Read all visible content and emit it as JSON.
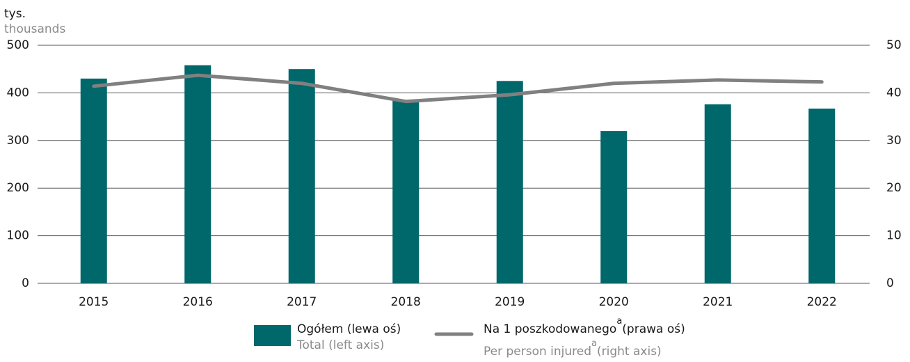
{
  "chart_data": {
    "type": "bar_line",
    "y_label": "tys.",
    "y_label_en": "thousands",
    "categories": [
      "2015",
      "2016",
      "2017",
      "2018",
      "2019",
      "2020",
      "2021",
      "2022"
    ],
    "series": [
      {
        "name": "Ogółem (lewa oś)",
        "name_en": "Total (left axis)",
        "type": "bar",
        "color": "#00676b",
        "values": [
          430,
          458,
          450,
          385,
          425,
          320,
          376,
          367
        ]
      },
      {
        "name": "Na 1 poszkodowanego",
        "name_suffix": "(prawa oś)",
        "name_en": "Per person injured",
        "name_en_suffix": "(right axis)",
        "marker": "a",
        "type": "line",
        "color": "#808080",
        "axis": "y2",
        "values": [
          41.4,
          43.7,
          42.0,
          38.2,
          39.6,
          42.0,
          42.7,
          42.3
        ]
      }
    ],
    "ylim": [
      0,
      500
    ],
    "yticks": [
      0,
      100,
      200,
      300,
      400,
      500
    ],
    "y2lim": [
      0,
      50
    ],
    "y2ticks": [
      0,
      10,
      20,
      30,
      40,
      50
    ],
    "grid": true
  }
}
